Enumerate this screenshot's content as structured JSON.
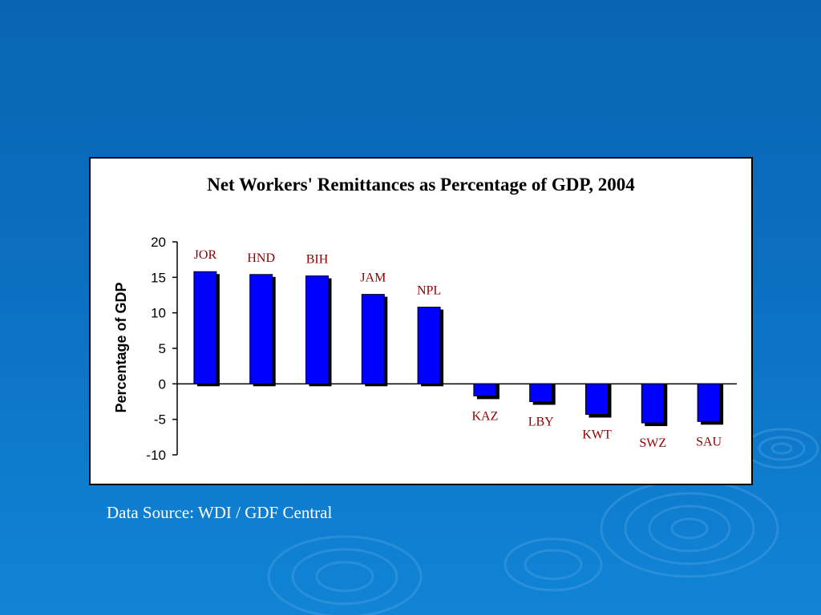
{
  "source_note": "Data Source: WDI / GDF Central",
  "colors": {
    "bar_fill": "#0000ff",
    "bar_shadow": "#000000",
    "label_color": "#8b0000",
    "background_top": "#0a64b4",
    "background_bottom": "#1184d6"
  },
  "chart_data": {
    "type": "bar",
    "title": "Net Workers' Remittances as Percentage of GDP, 2004",
    "xlabel": "",
    "ylabel": "Percentage of GDP",
    "ylim": [
      -10,
      20
    ],
    "yticks": [
      20,
      15,
      10,
      5,
      0,
      -5,
      -10
    ],
    "categories": [
      "JOR",
      "HND",
      "BIH",
      "JAM",
      "NPL",
      "KAZ",
      "LBY",
      "KWT",
      "SWZ",
      "SAU"
    ],
    "values": [
      15.8,
      15.4,
      15.2,
      12.6,
      10.8,
      -1.7,
      -2.5,
      -4.3,
      -5.5,
      -5.3
    ],
    "grid": false,
    "legend": "none"
  }
}
